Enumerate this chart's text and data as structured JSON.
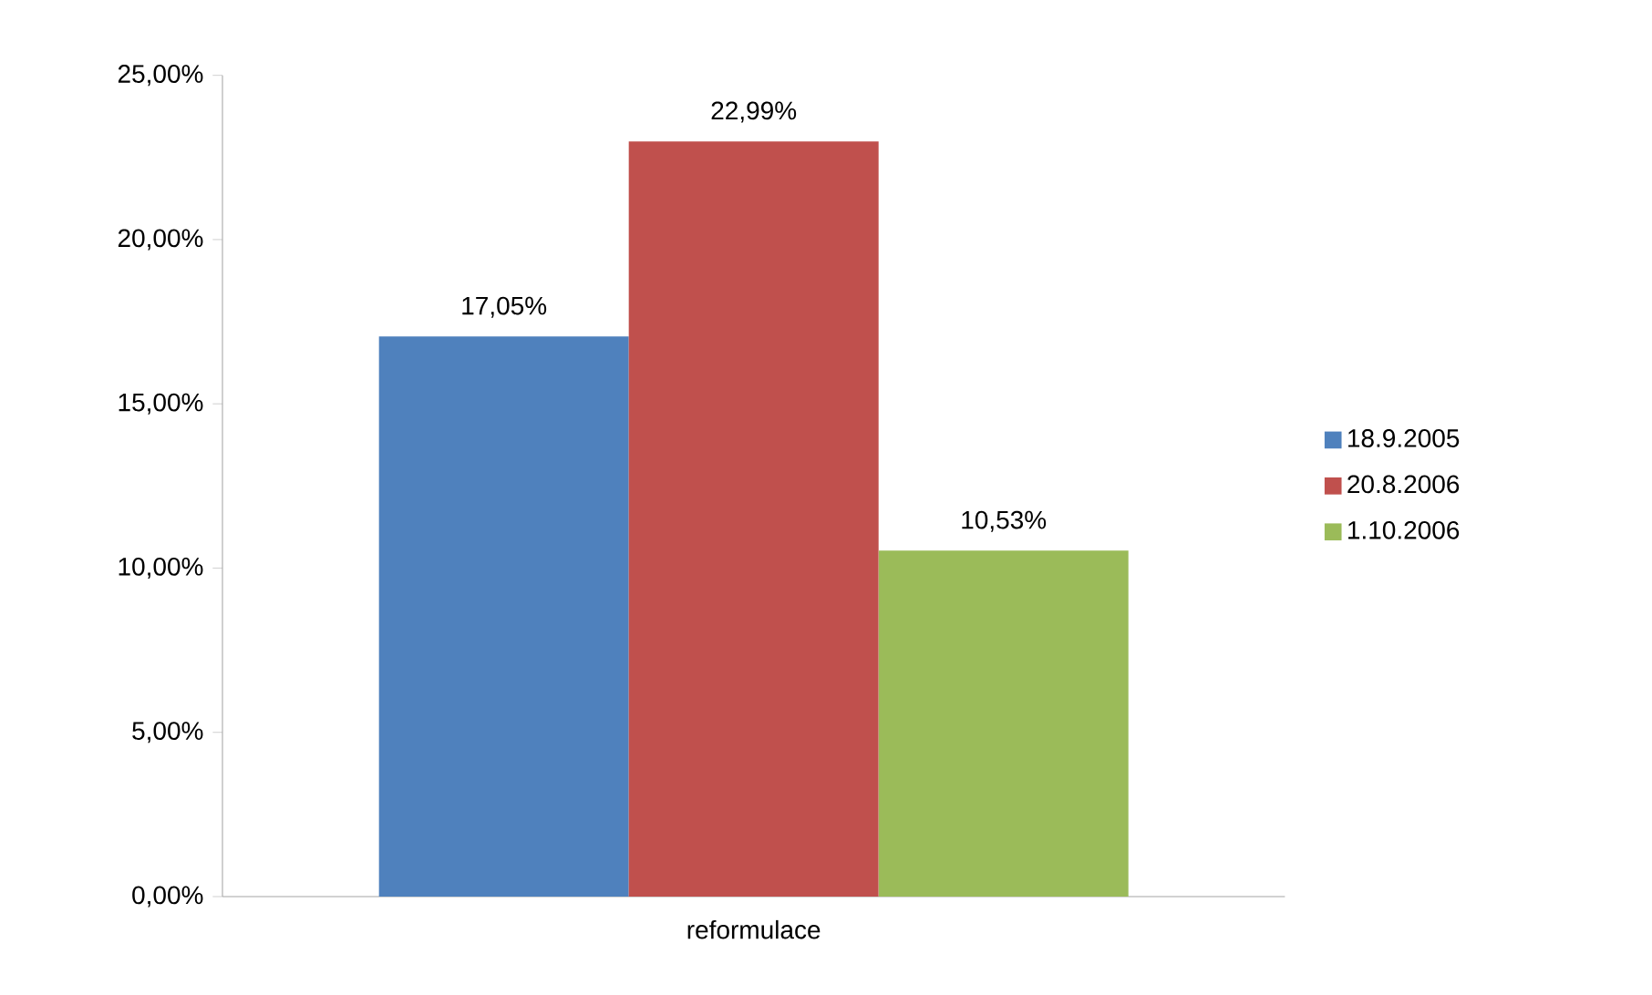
{
  "chart_data": {
    "type": "bar",
    "categories": [
      "reformulace"
    ],
    "series": [
      {
        "name": "18.9.2005",
        "color": "#4f81bd",
        "values": [
          17.05
        ],
        "value_labels": [
          "17,05%"
        ]
      },
      {
        "name": "20.8.2006",
        "color": "#c0504d",
        "values": [
          22.99
        ],
        "value_labels": [
          "22,99%"
        ]
      },
      {
        "name": "1.10.2006",
        "color": "#9bbb59",
        "values": [
          10.53
        ],
        "value_labels": [
          "10,53%"
        ]
      }
    ],
    "ylim": [
      0,
      25
    ],
    "yticks": [
      {
        "value": 0,
        "label": "0,00%"
      },
      {
        "value": 5,
        "label": "5,00%"
      },
      {
        "value": 10,
        "label": "10,00%"
      },
      {
        "value": 15,
        "label": "15,00%"
      },
      {
        "value": 20,
        "label": "20,00%"
      },
      {
        "value": 25,
        "label": "25,00%"
      }
    ],
    "grid": false,
    "legend": "right"
  }
}
